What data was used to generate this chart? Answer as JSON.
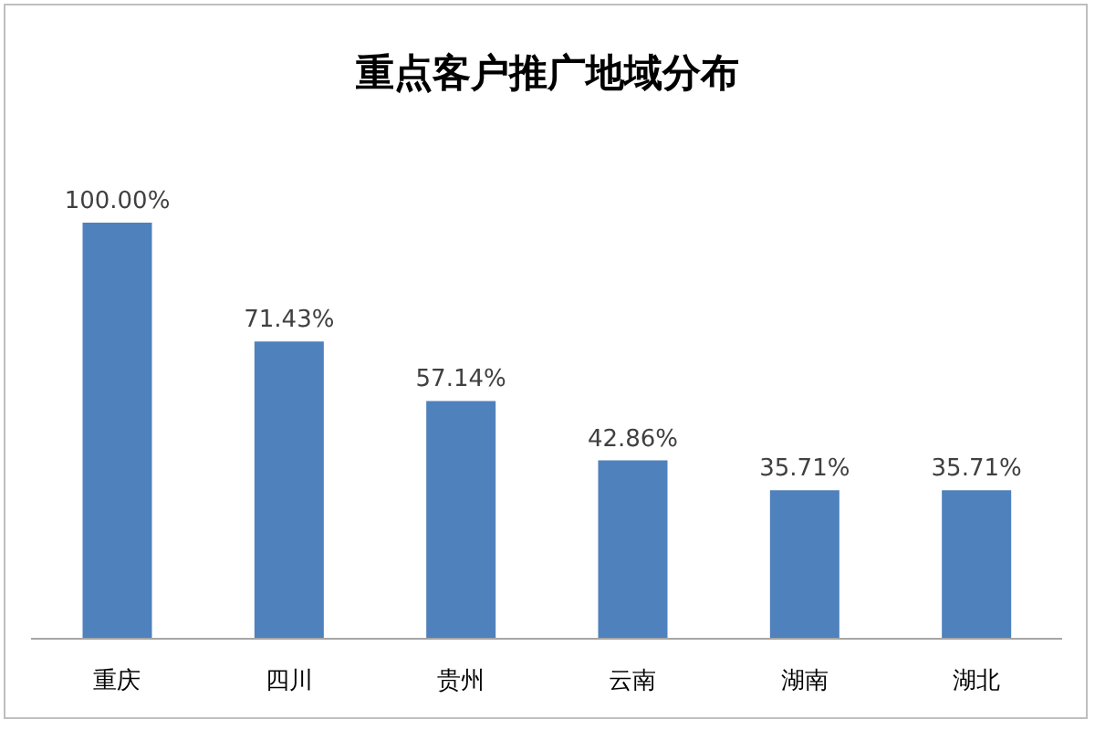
{
  "chart_data": {
    "type": "bar",
    "title": "重点客户推广地域分布",
    "categories": [
      "重庆",
      "四川",
      "贵州",
      "云南",
      "湖南",
      "湖北"
    ],
    "values": [
      100,
      71.43,
      57.14,
      42.86,
      35.71,
      35.71
    ],
    "value_labels": [
      "100.00%",
      "71.43%",
      "57.14%",
      "42.86%",
      "35.71%",
      "35.71%"
    ],
    "color": "#4f81bd"
  }
}
